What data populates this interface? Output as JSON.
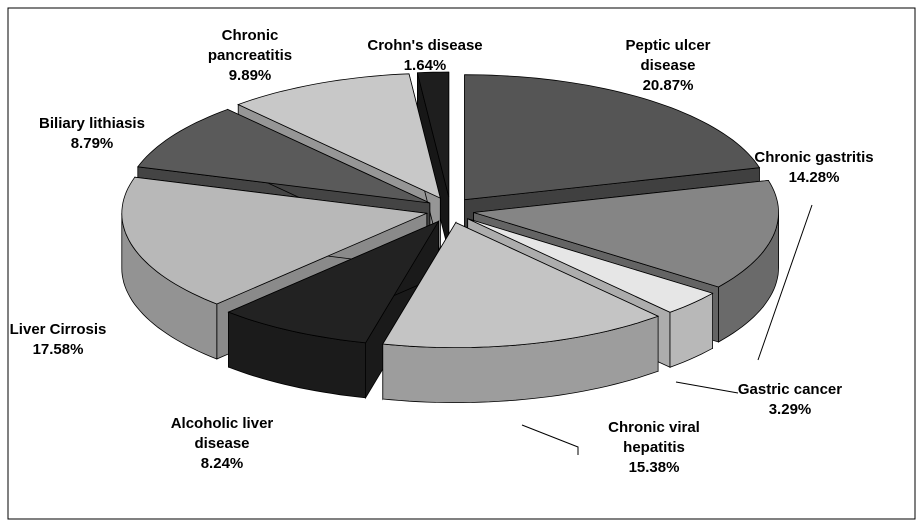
{
  "chart_data": {
    "type": "pie3d",
    "categories": [
      "Peptic ulcer disease",
      "Chronic gastritis",
      "Gastric cancer",
      "Chronic viral hepatitis",
      "Alcoholic liver disease",
      "Liver Cirrosis",
      "Biliary lithiasis",
      "Chronic pancreatitis",
      "Crohn's disease"
    ],
    "values": [
      20.87,
      14.28,
      3.29,
      15.38,
      8.24,
      17.58,
      8.79,
      9.89,
      1.64
    ],
    "value_labels": [
      "20.87%",
      "14.28%",
      "3.29%",
      "15.38%",
      "8.24%",
      "17.58%",
      "8.79%",
      "9.89%",
      "1.64%"
    ],
    "colors": [
      "#555555",
      "#858585",
      "#e6e6e6",
      "#c4c4c4",
      "#222222",
      "#b8b8b8",
      "#5a5a5a",
      "#c8c8c8",
      "#1e1e1e"
    ]
  }
}
